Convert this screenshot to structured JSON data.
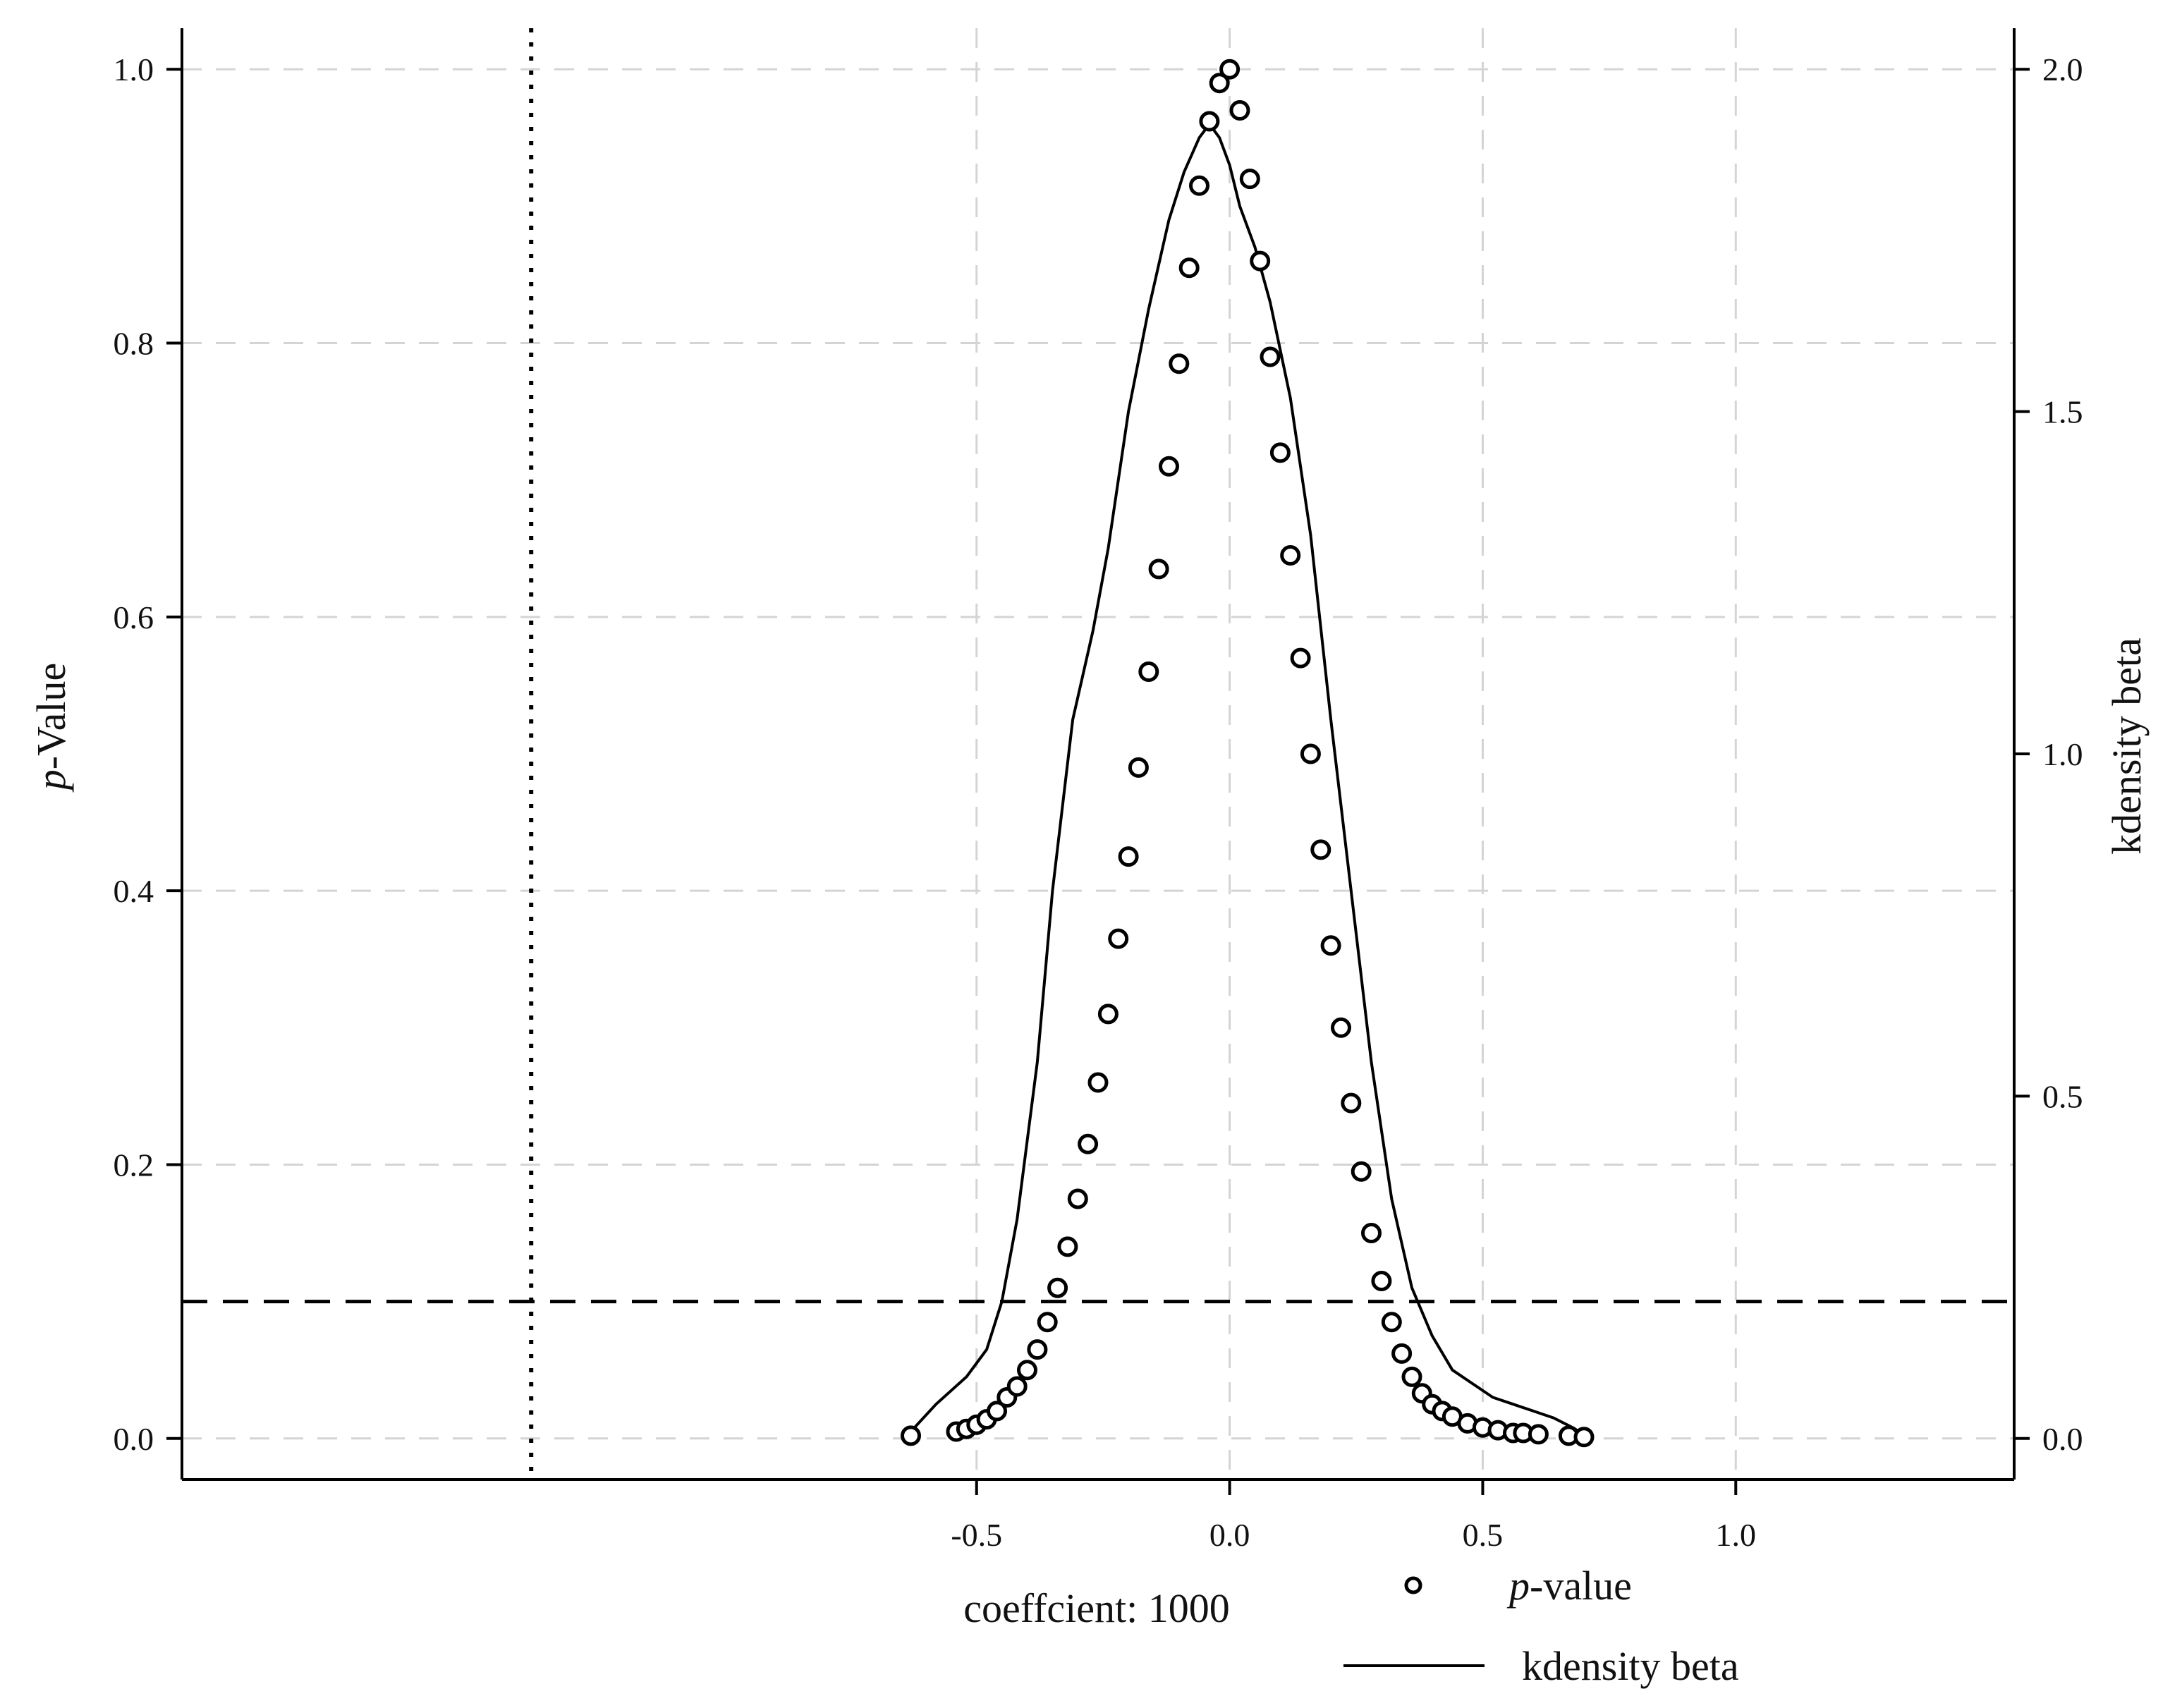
{
  "chart_data": {
    "type": "scatter",
    "title": "",
    "x_axis": {
      "label": "coeffcient: 1000",
      "range": [
        -2.07,
        1.55
      ],
      "ticks": [
        -0.5,
        0.0,
        0.5,
        1.0
      ],
      "tick_labels": [
        "-0.5",
        "0.0",
        "0.5",
        "1.0"
      ]
    },
    "y_axis_left": {
      "label_italic": "p",
      "label_rest": "-Value",
      "range": [
        -0.03,
        1.03
      ],
      "ticks": [
        0.0,
        0.2,
        0.4,
        0.6,
        0.8,
        1.0
      ],
      "tick_labels": [
        "0.0",
        "0.2",
        "0.4",
        "0.6",
        "0.8",
        "1.0"
      ]
    },
    "y_axis_right": {
      "label": "kdensity beta",
      "range": [
        -0.06,
        2.06
      ],
      "ticks": [
        0.0,
        0.5,
        1.0,
        1.5,
        2.0
      ],
      "tick_labels": [
        "0.0",
        "0.5",
        "1.0",
        "1.5",
        "2.0"
      ]
    },
    "grid": true,
    "reference_lines": [
      {
        "orientation": "horizontal",
        "axis": "left",
        "value": 0.1,
        "style": "dashed"
      },
      {
        "orientation": "vertical",
        "value": -1.38,
        "style": "dotted"
      }
    ],
    "series": [
      {
        "name_italic": "p",
        "name_rest": "-value",
        "kind": "scatter",
        "marker": "hollow-circle",
        "axis": "left",
        "x": [
          -0.63,
          -0.54,
          -0.52,
          -0.5,
          -0.48,
          -0.46,
          -0.44,
          -0.42,
          -0.4,
          -0.38,
          -0.36,
          -0.34,
          -0.32,
          -0.3,
          -0.28,
          -0.26,
          -0.24,
          -0.22,
          -0.2,
          -0.18,
          -0.16,
          -0.14,
          -0.12,
          -0.1,
          -0.08,
          -0.06,
          -0.04,
          -0.02,
          0.0,
          0.02,
          0.04,
          0.06,
          0.08,
          0.1,
          0.12,
          0.14,
          0.16,
          0.18,
          0.2,
          0.22,
          0.24,
          0.26,
          0.28,
          0.3,
          0.32,
          0.34,
          0.36,
          0.38,
          0.4,
          0.42,
          0.44,
          0.47,
          0.5,
          0.53,
          0.56,
          0.58,
          0.61,
          0.67,
          0.7
        ],
        "y": [
          0.002,
          0.005,
          0.007,
          0.01,
          0.014,
          0.02,
          0.03,
          0.038,
          0.05,
          0.065,
          0.085,
          0.11,
          0.14,
          0.175,
          0.215,
          0.26,
          0.31,
          0.365,
          0.425,
          0.49,
          0.56,
          0.635,
          0.71,
          0.785,
          0.855,
          0.915,
          0.962,
          0.99,
          1.0,
          0.97,
          0.92,
          0.86,
          0.79,
          0.72,
          0.645,
          0.57,
          0.5,
          0.43,
          0.36,
          0.3,
          0.245,
          0.195,
          0.15,
          0.115,
          0.085,
          0.062,
          0.045,
          0.033,
          0.025,
          0.02,
          0.016,
          0.011,
          0.008,
          0.006,
          0.004,
          0.004,
          0.003,
          0.002,
          0.001
        ]
      },
      {
        "name": "kdensity beta",
        "kind": "line",
        "axis": "right",
        "x": [
          -0.63,
          -0.58,
          -0.52,
          -0.48,
          -0.45,
          -0.42,
          -0.38,
          -0.35,
          -0.31,
          -0.27,
          -0.24,
          -0.2,
          -0.16,
          -0.12,
          -0.09,
          -0.06,
          -0.04,
          -0.02,
          0.0,
          0.02,
          0.05,
          0.08,
          0.12,
          0.16,
          0.2,
          0.24,
          0.28,
          0.32,
          0.36,
          0.4,
          0.44,
          0.48,
          0.52,
          0.56,
          0.6,
          0.64,
          0.68,
          0.7
        ],
        "y": [
          0.01,
          0.05,
          0.09,
          0.13,
          0.2,
          0.32,
          0.55,
          0.8,
          1.05,
          1.18,
          1.3,
          1.5,
          1.65,
          1.78,
          1.85,
          1.9,
          1.92,
          1.9,
          1.86,
          1.8,
          1.74,
          1.66,
          1.52,
          1.32,
          1.05,
          0.8,
          0.55,
          0.35,
          0.22,
          0.15,
          0.1,
          0.08,
          0.06,
          0.05,
          0.04,
          0.03,
          0.015,
          0.005
        ]
      }
    ]
  }
}
